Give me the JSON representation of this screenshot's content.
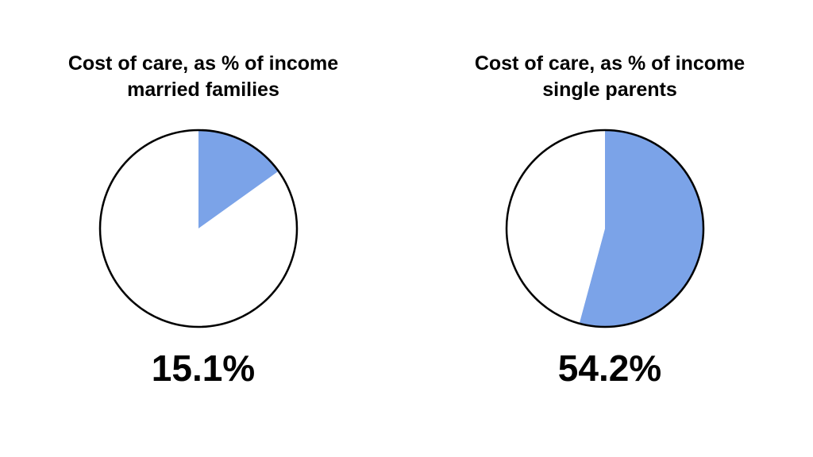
{
  "chart_data": [
    {
      "type": "pie",
      "title": "Cost of care, as % of income",
      "subtitle": "married families",
      "value_label": "15.1%",
      "slices": [
        {
          "value": 15.1,
          "color": "#7ba3e8"
        },
        {
          "value": 84.9,
          "color": "#ffffff"
        }
      ]
    },
    {
      "type": "pie",
      "title": "Cost of care, as % of income",
      "subtitle": "single parents",
      "value_label": "54.2%",
      "slices": [
        {
          "value": 54.2,
          "color": "#7ba3e8"
        },
        {
          "value": 45.8,
          "color": "#ffffff"
        }
      ]
    }
  ],
  "colors": {
    "accent": "#7ba3e8",
    "outline": "#000000"
  }
}
